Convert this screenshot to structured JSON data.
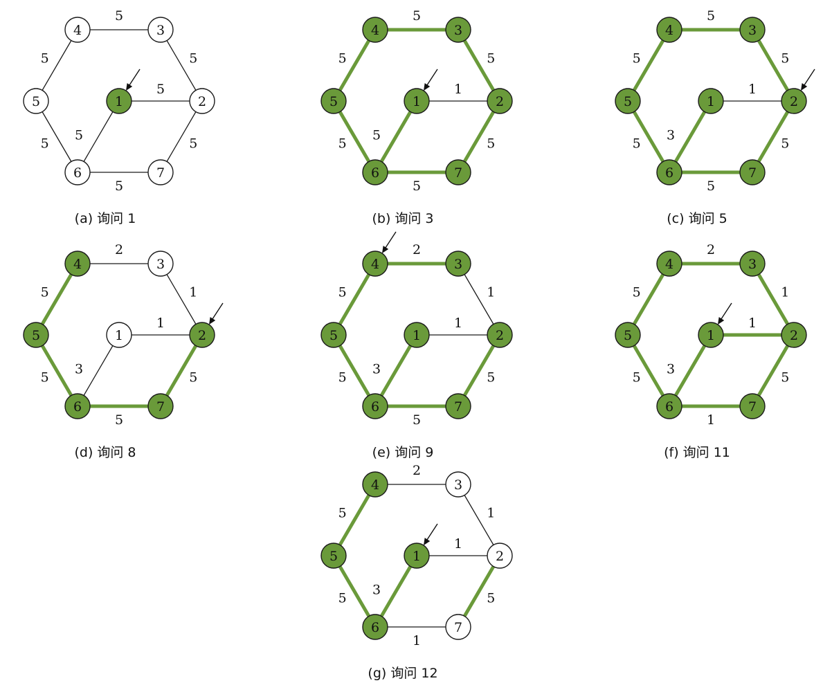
{
  "colors": {
    "highlight": "#6a9a3a",
    "stroke": "#1a1a1a"
  },
  "panels": [
    {
      "caption": "(a) 询问 1",
      "origin": [
        0,
        0
      ],
      "filled_nodes": [
        "1"
      ],
      "arrow_node": "1",
      "edges": [
        {
          "a": "4",
          "b": "3",
          "w": "5",
          "hl": false
        },
        {
          "a": "3",
          "b": "2",
          "w": "5",
          "hl": false
        },
        {
          "a": "2",
          "b": "7",
          "w": "5",
          "hl": false
        },
        {
          "a": "7",
          "b": "6",
          "w": "5",
          "hl": false
        },
        {
          "a": "6",
          "b": "5",
          "w": "5",
          "hl": false
        },
        {
          "a": "5",
          "b": "4",
          "w": "5",
          "hl": false
        },
        {
          "a": "1",
          "b": "2",
          "w": "5",
          "hl": false
        },
        {
          "a": "1",
          "b": "6",
          "w": "5",
          "hl": false
        }
      ]
    },
    {
      "caption": "(b) 询问 3",
      "origin": [
        430,
        0
      ],
      "filled_nodes": [
        "1",
        "2",
        "3",
        "4",
        "5",
        "6",
        "7"
      ],
      "arrow_node": "1",
      "edges": [
        {
          "a": "4",
          "b": "3",
          "w": "5",
          "hl": true
        },
        {
          "a": "3",
          "b": "2",
          "w": "5",
          "hl": true
        },
        {
          "a": "2",
          "b": "7",
          "w": "5",
          "hl": true
        },
        {
          "a": "7",
          "b": "6",
          "w": "5",
          "hl": true
        },
        {
          "a": "6",
          "b": "5",
          "w": "5",
          "hl": true
        },
        {
          "a": "5",
          "b": "4",
          "w": "5",
          "hl": true
        },
        {
          "a": "1",
          "b": "2",
          "w": "1",
          "hl": false
        },
        {
          "a": "1",
          "b": "6",
          "w": "5",
          "hl": true
        }
      ]
    },
    {
      "caption": "(c) 询问 5",
      "origin": [
        855,
        0
      ],
      "filled_nodes": [
        "1",
        "2",
        "3",
        "4",
        "5",
        "6",
        "7"
      ],
      "arrow_node": "2",
      "edges": [
        {
          "a": "4",
          "b": "3",
          "w": "5",
          "hl": true
        },
        {
          "a": "3",
          "b": "2",
          "w": "5",
          "hl": true
        },
        {
          "a": "2",
          "b": "7",
          "w": "5",
          "hl": true
        },
        {
          "a": "7",
          "b": "6",
          "w": "5",
          "hl": true
        },
        {
          "a": "6",
          "b": "5",
          "w": "5",
          "hl": true
        },
        {
          "a": "5",
          "b": "4",
          "w": "5",
          "hl": true
        },
        {
          "a": "1",
          "b": "2",
          "w": "1",
          "hl": false
        },
        {
          "a": "1",
          "b": "6",
          "w": "3",
          "hl": true
        }
      ]
    },
    {
      "caption": "(d) 询问 8",
      "origin": [
        0,
        338
      ],
      "filled_nodes": [
        "2",
        "4",
        "5",
        "6",
        "7"
      ],
      "arrow_node": "2",
      "edges": [
        {
          "a": "4",
          "b": "3",
          "w": "2",
          "hl": false
        },
        {
          "a": "3",
          "b": "2",
          "w": "1",
          "hl": false
        },
        {
          "a": "2",
          "b": "7",
          "w": "5",
          "hl": true
        },
        {
          "a": "7",
          "b": "6",
          "w": "5",
          "hl": true
        },
        {
          "a": "6",
          "b": "5",
          "w": "5",
          "hl": true
        },
        {
          "a": "5",
          "b": "4",
          "w": "5",
          "hl": true
        },
        {
          "a": "1",
          "b": "2",
          "w": "1",
          "hl": false
        },
        {
          "a": "1",
          "b": "6",
          "w": "3",
          "hl": false
        }
      ]
    },
    {
      "caption": "(e) 询问 9",
      "origin": [
        430,
        338
      ],
      "filled_nodes": [
        "1",
        "2",
        "3",
        "4",
        "5",
        "6",
        "7"
      ],
      "arrow_node": "4",
      "edges": [
        {
          "a": "4",
          "b": "3",
          "w": "2",
          "hl": true
        },
        {
          "a": "3",
          "b": "2",
          "w": "1",
          "hl": false
        },
        {
          "a": "2",
          "b": "7",
          "w": "5",
          "hl": true
        },
        {
          "a": "7",
          "b": "6",
          "w": "5",
          "hl": true
        },
        {
          "a": "6",
          "b": "5",
          "w": "5",
          "hl": true
        },
        {
          "a": "5",
          "b": "4",
          "w": "5",
          "hl": true
        },
        {
          "a": "1",
          "b": "2",
          "w": "1",
          "hl": false
        },
        {
          "a": "1",
          "b": "6",
          "w": "3",
          "hl": true
        }
      ]
    },
    {
      "caption": "(f) 询问 11",
      "origin": [
        855,
        338
      ],
      "filled_nodes": [
        "1",
        "2",
        "3",
        "4",
        "5",
        "6",
        "7"
      ],
      "arrow_node": "1",
      "edges": [
        {
          "a": "4",
          "b": "3",
          "w": "2",
          "hl": true
        },
        {
          "a": "3",
          "b": "2",
          "w": "1",
          "hl": true
        },
        {
          "a": "2",
          "b": "7",
          "w": "5",
          "hl": true
        },
        {
          "a": "7",
          "b": "6",
          "w": "1",
          "hl": true
        },
        {
          "a": "6",
          "b": "5",
          "w": "5",
          "hl": true
        },
        {
          "a": "5",
          "b": "4",
          "w": "5",
          "hl": true
        },
        {
          "a": "1",
          "b": "2",
          "w": "1",
          "hl": true
        },
        {
          "a": "1",
          "b": "6",
          "w": "3",
          "hl": true
        }
      ]
    },
    {
      "caption": "(g) 询问 12",
      "origin": [
        430,
        657
      ],
      "filled_nodes": [
        "1",
        "4",
        "5",
        "6"
      ],
      "arrow_node": "1",
      "edges": [
        {
          "a": "4",
          "b": "3",
          "w": "2",
          "hl": false
        },
        {
          "a": "3",
          "b": "2",
          "w": "1",
          "hl": false
        },
        {
          "a": "2",
          "b": "7",
          "w": "5",
          "hl": true
        },
        {
          "a": "7",
          "b": "6",
          "w": "1",
          "hl": false
        },
        {
          "a": "6",
          "b": "5",
          "w": "5",
          "hl": true
        },
        {
          "a": "5",
          "b": "4",
          "w": "5",
          "hl": true
        },
        {
          "a": "1",
          "b": "2",
          "w": "1",
          "hl": false
        },
        {
          "a": "1",
          "b": "6",
          "w": "3",
          "hl": true
        }
      ]
    }
  ]
}
